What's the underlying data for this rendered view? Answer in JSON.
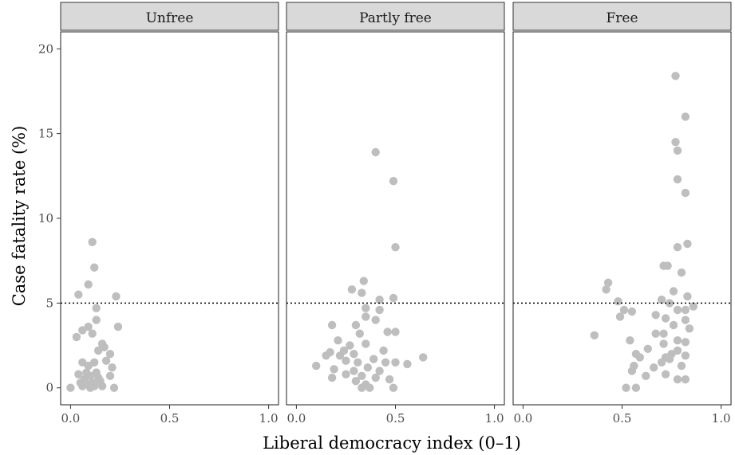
{
  "chart_data": {
    "type": "scatter",
    "xlabel": "Liberal democracy index (0–1)",
    "ylabel": "Case fatality rate (%)",
    "xlim": [
      -0.05,
      1.05
    ],
    "ylim": [
      -1.0,
      21.0
    ],
    "x_ticks": [
      0.0,
      0.5,
      1.0
    ],
    "x_tick_labels": [
      "0.0",
      "0.5",
      "1.0"
    ],
    "y_ticks": [
      0,
      5,
      10,
      15,
      20
    ],
    "y_tick_labels": [
      "0",
      "5",
      "10",
      "15",
      "20"
    ],
    "reference_line": {
      "y": 5,
      "style": "dotted"
    },
    "grid": false,
    "point_color": "#bebebe",
    "panels": [
      {
        "title": "Unfree",
        "points": [
          [
            0.11,
            8.6
          ],
          [
            0.12,
            7.1
          ],
          [
            0.09,
            6.1
          ],
          [
            0.04,
            5.5
          ],
          [
            0.23,
            5.4
          ],
          [
            0.13,
            4.7
          ],
          [
            0.13,
            4.0
          ],
          [
            0.06,
            3.4
          ],
          [
            0.24,
            3.6
          ],
          [
            0.09,
            3.6
          ],
          [
            0.11,
            3.2
          ],
          [
            0.03,
            3.0
          ],
          [
            0.16,
            2.6
          ],
          [
            0.14,
            2.2
          ],
          [
            0.2,
            2.0
          ],
          [
            0.06,
            1.5
          ],
          [
            0.12,
            1.5
          ],
          [
            0.18,
            1.6
          ],
          [
            0.09,
            1.3
          ],
          [
            0.21,
            1.2
          ],
          [
            0.04,
            0.8
          ],
          [
            0.08,
            0.9
          ],
          [
            0.1,
            0.7
          ],
          [
            0.13,
            0.9
          ],
          [
            0.07,
            0.5
          ],
          [
            0.11,
            0.3
          ],
          [
            0.15,
            0.4
          ],
          [
            0.2,
            0.7
          ],
          [
            0.0,
            0.0
          ],
          [
            0.06,
            0.1
          ],
          [
            0.1,
            0.0
          ],
          [
            0.12,
            0.1
          ],
          [
            0.16,
            0.1
          ],
          [
            0.22,
            0.0
          ],
          [
            0.09,
            0.2
          ],
          [
            0.14,
            0.6
          ],
          [
            0.05,
            0.3
          ],
          [
            0.17,
            2.4
          ]
        ]
      },
      {
        "title": "Partly free",
        "points": [
          [
            0.4,
            13.9
          ],
          [
            0.49,
            12.2
          ],
          [
            0.5,
            8.3
          ],
          [
            0.34,
            6.3
          ],
          [
            0.28,
            5.8
          ],
          [
            0.33,
            5.6
          ],
          [
            0.42,
            5.2
          ],
          [
            0.49,
            5.3
          ],
          [
            0.35,
            4.7
          ],
          [
            0.42,
            4.6
          ],
          [
            0.4,
            4.0
          ],
          [
            0.35,
            4.2
          ],
          [
            0.18,
            3.7
          ],
          [
            0.3,
            3.7
          ],
          [
            0.46,
            3.3
          ],
          [
            0.5,
            3.3
          ],
          [
            0.32,
            3.2
          ],
          [
            0.21,
            2.8
          ],
          [
            0.27,
            2.5
          ],
          [
            0.35,
            2.6
          ],
          [
            0.24,
            2.2
          ],
          [
            0.29,
            2.0
          ],
          [
            0.44,
            2.2
          ],
          [
            0.17,
            2.1
          ],
          [
            0.64,
            1.8
          ],
          [
            0.15,
            1.9
          ],
          [
            0.25,
            1.6
          ],
          [
            0.39,
            1.7
          ],
          [
            0.31,
            1.5
          ],
          [
            0.45,
            1.5
          ],
          [
            0.5,
            1.5
          ],
          [
            0.56,
            1.4
          ],
          [
            0.1,
            1.3
          ],
          [
            0.19,
            1.1
          ],
          [
            0.29,
            1.0
          ],
          [
            0.36,
            1.2
          ],
          [
            0.42,
            1.0
          ],
          [
            0.25,
            0.8
          ],
          [
            0.33,
            0.7
          ],
          [
            0.4,
            0.6
          ],
          [
            0.18,
            0.6
          ],
          [
            0.47,
            0.5
          ],
          [
            0.35,
            0.2
          ],
          [
            0.49,
            0.0
          ],
          [
            0.33,
            0.0
          ],
          [
            0.37,
            0.0
          ],
          [
            0.3,
            0.4
          ],
          [
            0.22,
            1.9
          ]
        ]
      },
      {
        "title": "Free",
        "points": [
          [
            0.77,
            18.4
          ],
          [
            0.82,
            16.0
          ],
          [
            0.77,
            14.5
          ],
          [
            0.78,
            14.0
          ],
          [
            0.78,
            12.3
          ],
          [
            0.82,
            11.5
          ],
          [
            0.83,
            8.5
          ],
          [
            0.78,
            8.3
          ],
          [
            0.71,
            7.2
          ],
          [
            0.73,
            7.2
          ],
          [
            0.8,
            6.8
          ],
          [
            0.43,
            6.2
          ],
          [
            0.42,
            5.8
          ],
          [
            0.76,
            5.7
          ],
          [
            0.83,
            5.4
          ],
          [
            0.7,
            5.2
          ],
          [
            0.48,
            5.1
          ],
          [
            0.74,
            5.0
          ],
          [
            0.86,
            4.8
          ],
          [
            0.51,
            4.6
          ],
          [
            0.55,
            4.5
          ],
          [
            0.78,
            4.6
          ],
          [
            0.82,
            4.6
          ],
          [
            0.49,
            4.2
          ],
          [
            0.67,
            4.3
          ],
          [
            0.72,
            4.1
          ],
          [
            0.82,
            4.0
          ],
          [
            0.76,
            3.7
          ],
          [
            0.84,
            3.5
          ],
          [
            0.71,
            3.2
          ],
          [
            0.36,
            3.1
          ],
          [
            0.67,
            3.2
          ],
          [
            0.78,
            2.8
          ],
          [
            0.54,
            2.8
          ],
          [
            0.63,
            2.3
          ],
          [
            0.82,
            2.7
          ],
          [
            0.71,
            2.6
          ],
          [
            0.57,
            2.0
          ],
          [
            0.75,
            2.0
          ],
          [
            0.59,
            1.8
          ],
          [
            0.78,
            2.2
          ],
          [
            0.72,
            1.8
          ],
          [
            0.82,
            1.9
          ],
          [
            0.7,
            1.5
          ],
          [
            0.56,
            1.3
          ],
          [
            0.74,
            1.7
          ],
          [
            0.55,
            1.0
          ],
          [
            0.66,
            1.2
          ],
          [
            0.8,
            1.3
          ],
          [
            0.62,
            0.7
          ],
          [
            0.72,
            0.8
          ],
          [
            0.78,
            0.5
          ],
          [
            0.82,
            0.5
          ],
          [
            0.52,
            0.0
          ],
          [
            0.57,
            0.0
          ]
        ]
      }
    ]
  }
}
